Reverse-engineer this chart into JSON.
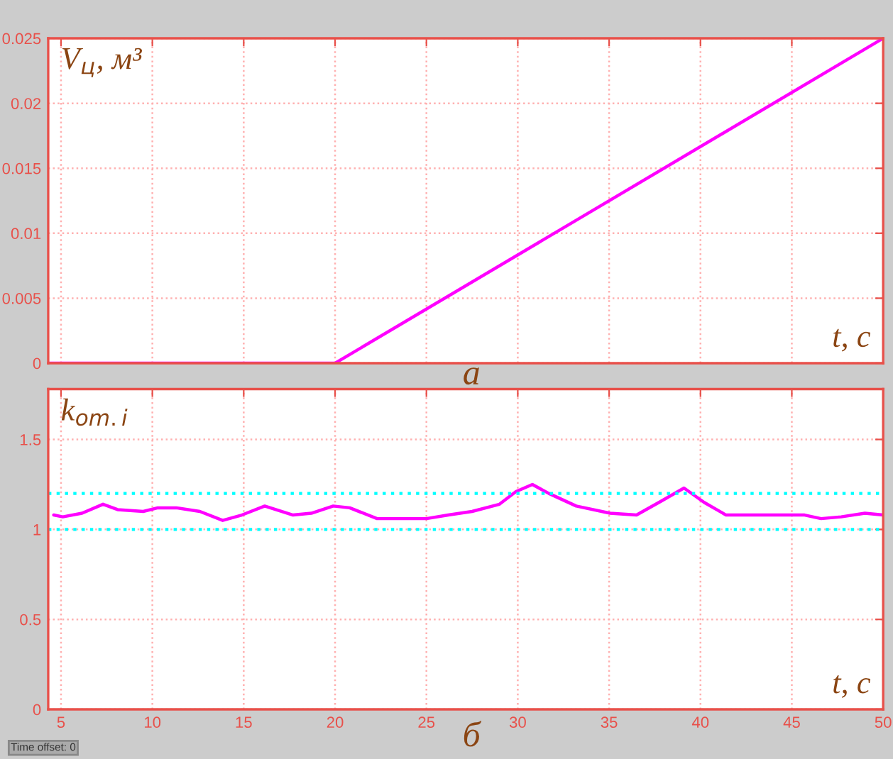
{
  "chart_data": [
    {
      "type": "line",
      "ylabel": "V$_{ц}$, м³",
      "xlabel": "t, c",
      "annotations": [
        "а"
      ],
      "series": [
        {
          "color": "#ff00ff",
          "x": [
            4.3,
            20,
            50
          ],
          "values": [
            0,
            0,
            0.025
          ]
        }
      ],
      "xlim": [
        4.3,
        50
      ],
      "xticks": [
        5,
        10,
        15,
        20,
        25,
        30,
        35,
        40,
        45,
        50
      ],
      "ylim": [
        0,
        0.025
      ],
      "yticks": [
        0,
        0.005,
        0.01,
        0.015,
        0.02,
        0.025
      ],
      "tick_labels": "y",
      "grid": true,
      "legend": false
    },
    {
      "type": "line",
      "ylabel": "k$_{om.i}$",
      "xlabel": "t, c",
      "annotations": [
        "б",
        "Time offset: 0"
      ],
      "series": [
        {
          "color": "#ff00ff",
          "x": [
            4.6,
            5.1,
            6.15,
            7.3,
            8.1,
            9.5,
            10.3,
            11.3,
            12.6,
            13.85,
            14.9,
            16.15,
            17.7,
            18.7,
            19.9,
            20.8,
            22.3,
            23.85,
            25.0,
            26.2,
            27.5,
            29.0,
            29.9,
            30.8,
            31.7,
            33.2,
            35.05,
            36.5,
            37.9,
            39.1,
            40.2,
            41.4,
            43.9,
            45.7,
            46.6,
            47.7,
            49.0,
            50.0
          ],
          "values": [
            1.08,
            1.07,
            1.09,
            1.14,
            1.11,
            1.1,
            1.12,
            1.12,
            1.1,
            1.05,
            1.08,
            1.13,
            1.08,
            1.09,
            1.13,
            1.12,
            1.06,
            1.06,
            1.06,
            1.08,
            1.1,
            1.14,
            1.21,
            1.25,
            1.2,
            1.13,
            1.09,
            1.08,
            1.16,
            1.23,
            1.15,
            1.08,
            1.08,
            1.08,
            1.06,
            1.07,
            1.09,
            1.08
          ]
        }
      ],
      "ref_lines": [
        {
          "axis": "y",
          "value": 1.2,
          "color": "#00ffff",
          "line_style": "dotted"
        },
        {
          "axis": "y",
          "value": 1.0,
          "color": "#00ffff",
          "line_style": "dotted"
        }
      ],
      "xlim": [
        4.3,
        50
      ],
      "xticks": [
        5,
        10,
        15,
        20,
        25,
        30,
        35,
        40,
        45,
        50
      ],
      "ylim": [
        0,
        1.78
      ],
      "yticks": [
        0,
        0.5,
        1,
        1.5
      ],
      "grid": true,
      "legend": false
    }
  ]
}
